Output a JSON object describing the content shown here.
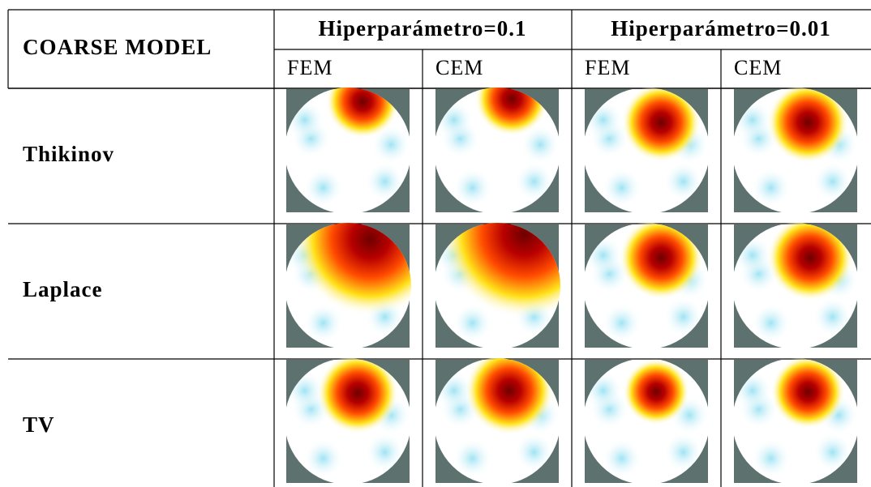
{
  "header": {
    "title": "COARSE MODEL",
    "groups": [
      "Hiperparámetro=0.1",
      "Hiperparámetro=0.01"
    ],
    "subcolumns": [
      "FEM",
      "CEM",
      "FEM",
      "CEM"
    ]
  },
  "rows": [
    "Thikinov",
    "Laplace",
    "TV"
  ]
}
